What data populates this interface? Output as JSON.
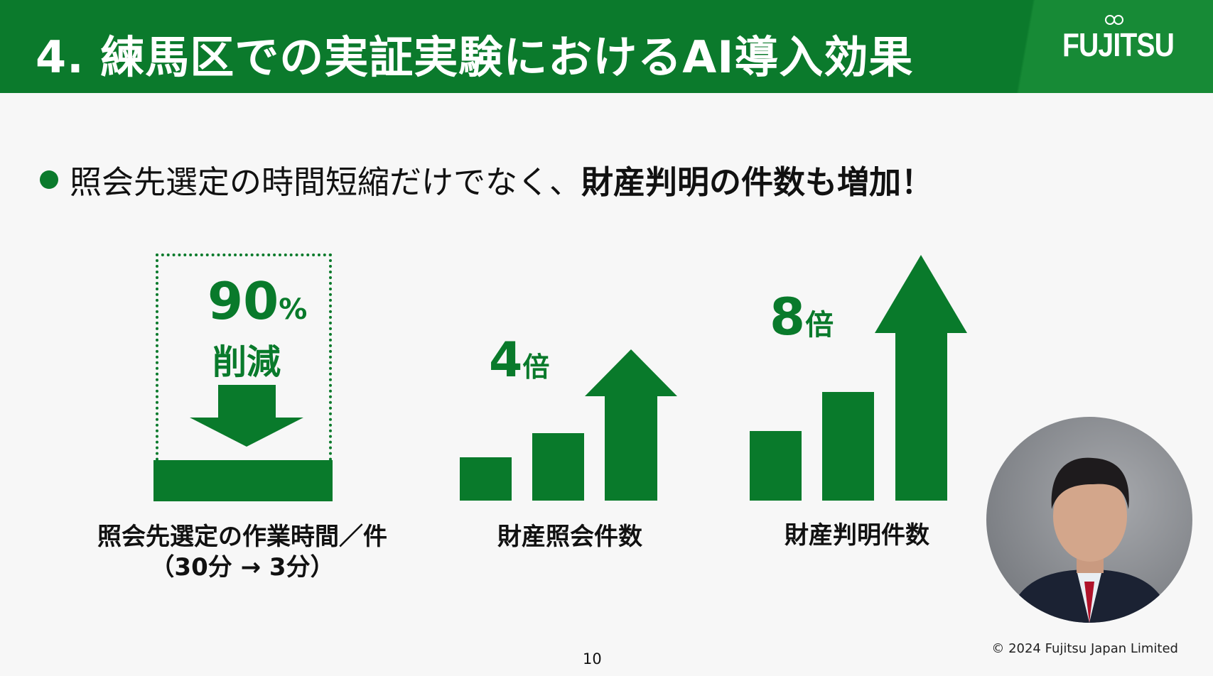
{
  "header": {
    "title": "4. 練馬区での実証実験におけるAI導入効果",
    "logo": "FUJITSU"
  },
  "bullet": {
    "normal": "照会先選定の時間短縮だけでなく、",
    "bold": "財産判明の件数も増加！"
  },
  "metrics": [
    {
      "value": "90",
      "unit": "%",
      "sub": "削減",
      "label_line1": "照会先選定の作業時間／件",
      "label_line2": "（30分 → 3分）"
    },
    {
      "value": "4",
      "unit": "倍",
      "label": "財産照会件数"
    },
    {
      "value": "8",
      "unit": "倍",
      "label": "財産判明件数"
    }
  ],
  "footer": {
    "page": "10",
    "copyright": "© 2024 Fujitsu Japan Limited"
  },
  "colors": {
    "brand_green": "#097a2b"
  }
}
